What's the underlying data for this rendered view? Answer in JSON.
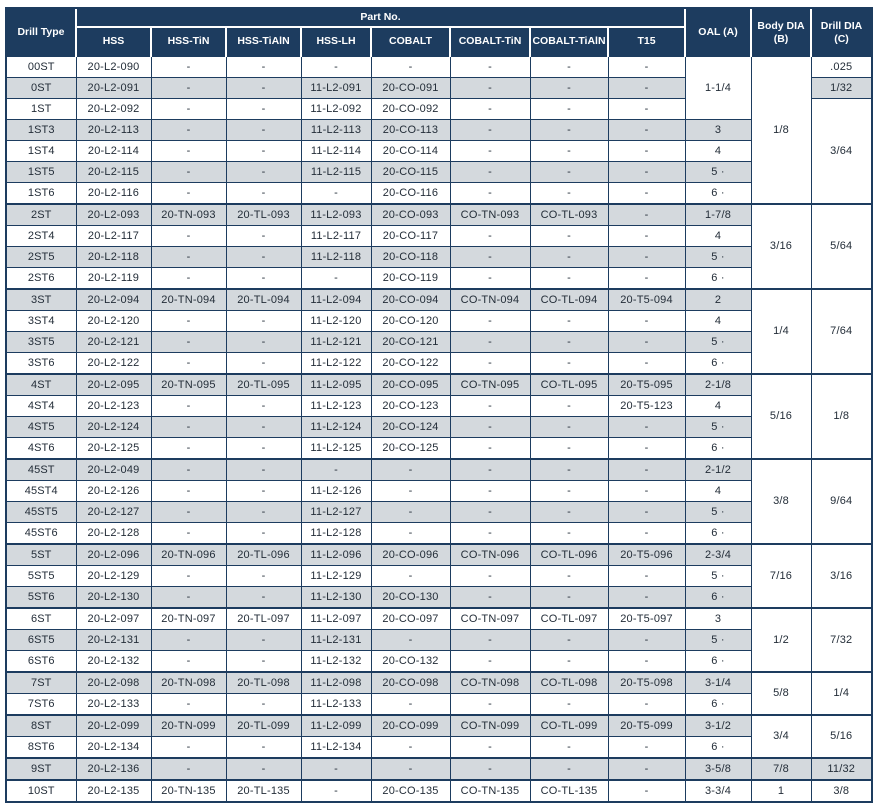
{
  "header": {
    "drill_type": "Drill Type",
    "part_no_group": "Part No.",
    "part_columns": [
      "HSS",
      "HSS-TiN",
      "HSS-TiAlN",
      "HSS-LH",
      "COBALT",
      "COBALT-TiN",
      "COBALT-TiAlN",
      "T15"
    ],
    "oal": "OAL (A)",
    "body_dia": "Body DIA\n(B)",
    "drill_dia": "Drill DIA\n(C)"
  },
  "colors": {
    "header_bg": "#1d3c5f",
    "stripe": "#d4d9dd",
    "border": "#1d3c5f",
    "text": "#232d38"
  },
  "rows": [
    {
      "type": "00ST",
      "parts": [
        "20-L2-090",
        "-",
        "-",
        "-",
        "-",
        "-",
        "-",
        "-"
      ],
      "oal": "1-1/4",
      "oal_span": 3,
      "body": "1/8",
      "body_span": 7,
      "drill": ".025",
      "drill_span": 1
    },
    {
      "type": "0ST",
      "parts": [
        "20-L2-091",
        "-",
        "-",
        "11-L2-091",
        "20-CO-091",
        "-",
        "-",
        "-"
      ],
      "drill": "1/32",
      "drill_span": 1
    },
    {
      "type": "1ST",
      "parts": [
        "20-L2-092",
        "-",
        "-",
        "11-L2-092",
        "20-CO-092",
        "-",
        "-",
        "-"
      ],
      "drill": "3/64",
      "drill_span": 5
    },
    {
      "type": "1ST3",
      "parts": [
        "20-L2-113",
        "-",
        "-",
        "11-L2-113",
        "20-CO-113",
        "-",
        "-",
        "-"
      ],
      "oal": "3",
      "oal_span": 1
    },
    {
      "type": "1ST4",
      "parts": [
        "20-L2-114",
        "-",
        "-",
        "11-L2-114",
        "20-CO-114",
        "-",
        "-",
        "-"
      ],
      "oal": "4",
      "oal_span": 1
    },
    {
      "type": "1ST5",
      "parts": [
        "20-L2-115",
        "-",
        "-",
        "11-L2-115",
        "20-CO-115",
        "-",
        "-",
        "-"
      ],
      "oal": "5 ·",
      "oal_span": 1
    },
    {
      "type": "1ST6",
      "parts": [
        "20-L2-116",
        "-",
        "-",
        "-",
        "20-CO-116",
        "-",
        "-",
        "-"
      ],
      "oal": "6 ·",
      "oal_span": 1
    },
    {
      "type": "2ST",
      "group_start": true,
      "parts": [
        "20-L2-093",
        "20-TN-093",
        "20-TL-093",
        "11-L2-093",
        "20-CO-093",
        "CO-TN-093",
        "CO-TL-093",
        "-"
      ],
      "oal": "1-7/8",
      "oal_span": 1,
      "body": "3/16",
      "body_span": 4,
      "drill": "5/64",
      "drill_span": 4
    },
    {
      "type": "2ST4",
      "parts": [
        "20-L2-117",
        "-",
        "-",
        "11-L2-117",
        "20-CO-117",
        "-",
        "-",
        "-"
      ],
      "oal": "4",
      "oal_span": 1
    },
    {
      "type": "2ST5",
      "parts": [
        "20-L2-118",
        "-",
        "-",
        "11-L2-118",
        "20-CO-118",
        "-",
        "-",
        "-"
      ],
      "oal": "5 ·",
      "oal_span": 1
    },
    {
      "type": "2ST6",
      "parts": [
        "20-L2-119",
        "-",
        "-",
        "-",
        "20-CO-119",
        "-",
        "-",
        "-"
      ],
      "oal": "6 ·",
      "oal_span": 1
    },
    {
      "type": "3ST",
      "group_start": true,
      "parts": [
        "20-L2-094",
        "20-TN-094",
        "20-TL-094",
        "11-L2-094",
        "20-CO-094",
        "CO-TN-094",
        "CO-TL-094",
        "20-T5-094"
      ],
      "oal": "2",
      "oal_span": 1,
      "body": "1/4",
      "body_span": 4,
      "drill": "7/64",
      "drill_span": 4
    },
    {
      "type": "3ST4",
      "parts": [
        "20-L2-120",
        "-",
        "-",
        "11-L2-120",
        "20-CO-120",
        "-",
        "-",
        "-"
      ],
      "oal": "4",
      "oal_span": 1
    },
    {
      "type": "3ST5",
      "parts": [
        "20-L2-121",
        "-",
        "-",
        "11-L2-121",
        "20-CO-121",
        "-",
        "-",
        "-"
      ],
      "oal": "5 ·",
      "oal_span": 1
    },
    {
      "type": "3ST6",
      "parts": [
        "20-L2-122",
        "-",
        "-",
        "11-L2-122",
        "20-CO-122",
        "-",
        "-",
        "-"
      ],
      "oal": "6 ·",
      "oal_span": 1
    },
    {
      "type": "4ST",
      "group_start": true,
      "parts": [
        "20-L2-095",
        "20-TN-095",
        "20-TL-095",
        "11-L2-095",
        "20-CO-095",
        "CO-TN-095",
        "CO-TL-095",
        "20-T5-095"
      ],
      "oal": "2-1/8",
      "oal_span": 1,
      "body": "5/16",
      "body_span": 4,
      "drill": "1/8",
      "drill_span": 4
    },
    {
      "type": "4ST4",
      "parts": [
        "20-L2-123",
        "-",
        "-",
        "11-L2-123",
        "20-CO-123",
        "-",
        "-",
        "20-T5-123"
      ],
      "oal": "4",
      "oal_span": 1
    },
    {
      "type": "4ST5",
      "parts": [
        "20-L2-124",
        "-",
        "-",
        "11-L2-124",
        "20-CO-124",
        "-",
        "-",
        "-"
      ],
      "oal": "5 ·",
      "oal_span": 1
    },
    {
      "type": "4ST6",
      "parts": [
        "20-L2-125",
        "-",
        "-",
        "11-L2-125",
        "20-CO-125",
        "-",
        "-",
        "-"
      ],
      "oal": "6 ·",
      "oal_span": 1
    },
    {
      "type": "45ST",
      "group_start": true,
      "parts": [
        "20-L2-049",
        "-",
        "-",
        "-",
        "-",
        "-",
        "-",
        "-"
      ],
      "oal": "2-1/2",
      "oal_span": 1,
      "body": "3/8",
      "body_span": 4,
      "drill": "9/64",
      "drill_span": 4
    },
    {
      "type": "45ST4",
      "parts": [
        "20-L2-126",
        "-",
        "-",
        "11-L2-126",
        "-",
        "-",
        "-",
        "-"
      ],
      "oal": "4",
      "oal_span": 1
    },
    {
      "type": "45ST5",
      "parts": [
        "20-L2-127",
        "-",
        "-",
        "11-L2-127",
        "-",
        "-",
        "-",
        "-"
      ],
      "oal": "5 ·",
      "oal_span": 1
    },
    {
      "type": "45ST6",
      "parts": [
        "20-L2-128",
        "-",
        "-",
        "11-L2-128",
        "-",
        "-",
        "-",
        "-"
      ],
      "oal": "6 ·",
      "oal_span": 1
    },
    {
      "type": "5ST",
      "group_start": true,
      "parts": [
        "20-L2-096",
        "20-TN-096",
        "20-TL-096",
        "11-L2-096",
        "20-CO-096",
        "CO-TN-096",
        "CO-TL-096",
        "20-T5-096"
      ],
      "oal": "2-3/4",
      "oal_span": 1,
      "body": "7/16",
      "body_span": 3,
      "drill": "3/16",
      "drill_span": 3
    },
    {
      "type": "5ST5",
      "parts": [
        "20-L2-129",
        "-",
        "-",
        "11-L2-129",
        "-",
        "-",
        "-",
        "-"
      ],
      "oal": "5 ·",
      "oal_span": 1
    },
    {
      "type": "5ST6",
      "parts": [
        "20-L2-130",
        "-",
        "-",
        "11-L2-130",
        "20-CO-130",
        "-",
        "-",
        "-"
      ],
      "oal": "6 ·",
      "oal_span": 1
    },
    {
      "type": "6ST",
      "group_start": true,
      "parts": [
        "20-L2-097",
        "20-TN-097",
        "20-TL-097",
        "11-L2-097",
        "20-CO-097",
        "CO-TN-097",
        "CO-TL-097",
        "20-T5-097"
      ],
      "oal": "3",
      "oal_span": 1,
      "body": "1/2",
      "body_span": 3,
      "drill": "7/32",
      "drill_span": 3
    },
    {
      "type": "6ST5",
      "parts": [
        "20-L2-131",
        "-",
        "-",
        "11-L2-131",
        "-",
        "-",
        "-",
        "-"
      ],
      "oal": "5 ·",
      "oal_span": 1
    },
    {
      "type": "6ST6",
      "parts": [
        "20-L2-132",
        "-",
        "-",
        "11-L2-132",
        "20-CO-132",
        "-",
        "-",
        "-"
      ],
      "oal": "6 ·",
      "oal_span": 1
    },
    {
      "type": "7ST",
      "group_start": true,
      "parts": [
        "20-L2-098",
        "20-TN-098",
        "20-TL-098",
        "11-L2-098",
        "20-CO-098",
        "CO-TN-098",
        "CO-TL-098",
        "20-T5-098"
      ],
      "oal": "3-1/4",
      "oal_span": 1,
      "body": "5/8",
      "body_span": 2,
      "drill": "1/4",
      "drill_span": 2
    },
    {
      "type": "7ST6",
      "parts": [
        "20-L2-133",
        "-",
        "-",
        "11-L2-133",
        "-",
        "-",
        "-",
        "-"
      ],
      "oal": "6 ·",
      "oal_span": 1
    },
    {
      "type": "8ST",
      "group_start": true,
      "parts": [
        "20-L2-099",
        "20-TN-099",
        "20-TL-099",
        "11-L2-099",
        "20-CO-099",
        "CO-TN-099",
        "CO-TL-099",
        "20-T5-099"
      ],
      "oal": "3-1/2",
      "oal_span": 1,
      "body": "3/4",
      "body_span": 2,
      "drill": "5/16",
      "drill_span": 2
    },
    {
      "type": "8ST6",
      "parts": [
        "20-L2-134",
        "-",
        "-",
        "11-L2-134",
        "-",
        "-",
        "-",
        "-"
      ],
      "oal": "6 ·",
      "oal_span": 1
    },
    {
      "type": "9ST",
      "group_start": true,
      "parts": [
        "20-L2-136",
        "-",
        "-",
        "-",
        "-",
        "-",
        "-",
        "-"
      ],
      "oal": "3-5/8",
      "oal_span": 1,
      "body": "7/8",
      "body_span": 1,
      "drill": "11/32",
      "drill_span": 1
    },
    {
      "type": "10ST",
      "group_start": true,
      "parts": [
        "20-L2-135",
        "20-TN-135",
        "20-TL-135",
        "-",
        "20-CO-135",
        "CO-TN-135",
        "CO-TL-135",
        "-"
      ],
      "oal": "3-3/4",
      "oal_span": 1,
      "body": "1",
      "body_span": 1,
      "drill": "3/8",
      "drill_span": 1
    }
  ]
}
